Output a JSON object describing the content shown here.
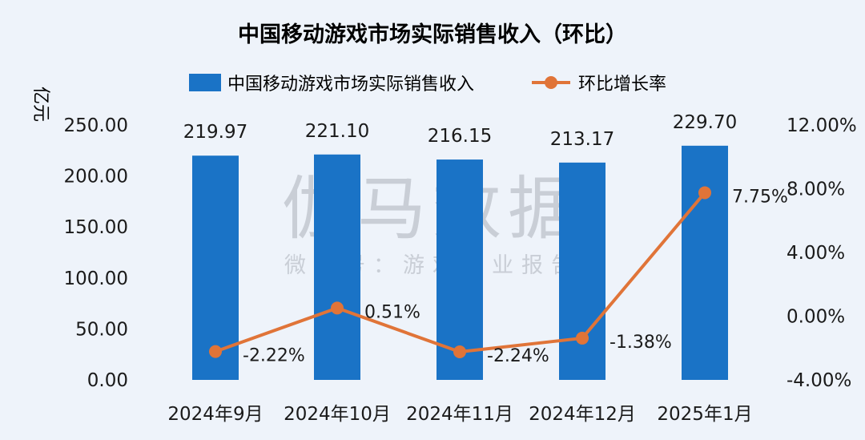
{
  "chart_data": {
    "type": "bar+line",
    "title": "中国移动游戏市场实际销售收入（环比）",
    "categories": [
      "2024年9月",
      "2024年10月",
      "2024年11月",
      "2024年12月",
      "2025年1月"
    ],
    "series": [
      {
        "name": "中国移动游戏市场实际销售收入",
        "type": "bar",
        "axis": "left",
        "values": [
          219.97,
          221.1,
          216.15,
          213.17,
          229.7
        ],
        "labels": [
          "219.97",
          "221.10",
          "216.15",
          "213.17",
          "229.70"
        ]
      },
      {
        "name": "环比增长率",
        "type": "line",
        "axis": "right",
        "values": [
          -2.22,
          0.51,
          -2.24,
          -1.38,
          7.75
        ],
        "labels": [
          "-2.22%",
          "0.51%",
          "-2.24%",
          "-1.38%",
          "7.75%"
        ]
      }
    ],
    "ylabel_left": "亿元",
    "ylim_left": [
      0,
      250
    ],
    "yticks_left": [
      "0.00",
      "50.00",
      "100.00",
      "150.00",
      "200.00",
      "250.00"
    ],
    "ylim_right": [
      -4,
      12
    ],
    "yticks_right": [
      "-4.00%",
      "0.00%",
      "4.00%",
      "8.00%",
      "12.00%"
    ],
    "grid": false,
    "legend": "top"
  },
  "watermark": {
    "main": "伽马数据",
    "sub": "微信号：游戏产业报告"
  },
  "colors": {
    "bar": "#1a73c6",
    "line": "#e07438",
    "background": "#eef3fa",
    "text": "#1a1a1a",
    "watermark": "#c9ced6"
  }
}
